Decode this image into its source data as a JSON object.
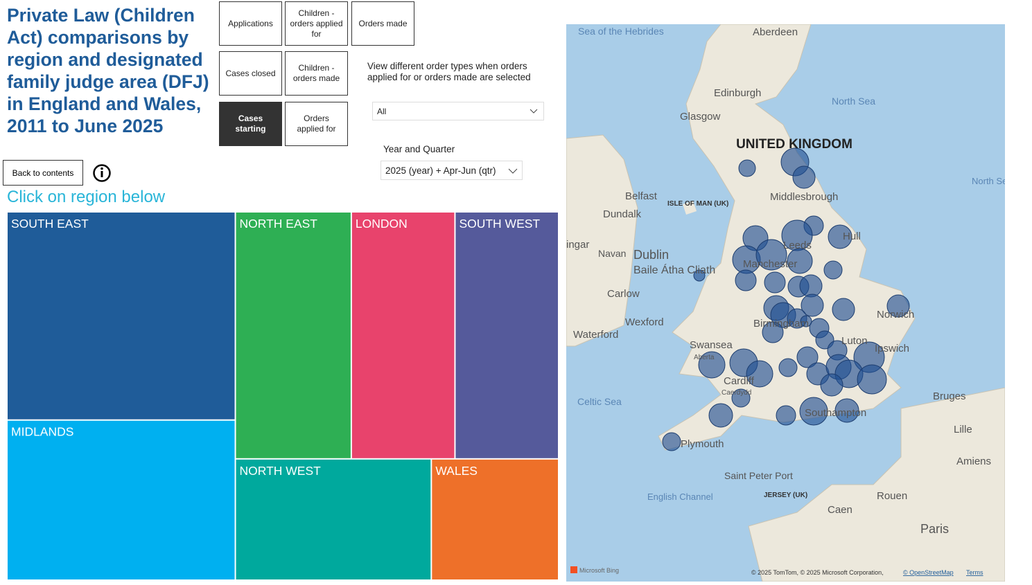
{
  "header": {
    "title": "Private Law (Children Act) comparisons by region and designated family judge area (DFJ) in England and Wales, 2011 to June 2025"
  },
  "buttons": [
    "Applications",
    "Children - orders applied for",
    "Orders made",
    "Cases closed",
    "Children - orders made",
    "Cases starting",
    "Orders applied for"
  ],
  "order_type_note": "View different order types when orders applied for or orders made are selected",
  "order_type_dropdown": "All",
  "period_label": "Year and Quarter",
  "period_dropdown": "2025 (year) + Apr-Jun (qtr)",
  "back_button": "Back to contents",
  "instruction": "Click on region below",
  "chart_data": {
    "type": "treemap",
    "categories": [
      "SOUTH EAST",
      "MIDLANDS",
      "NORTH EAST",
      "LONDON",
      "SOUTH WEST",
      "NORTH WEST",
      "WALES"
    ],
    "values": [
      23.4,
      18.0,
      14.1,
      12.6,
      12.6,
      11.7,
      7.6
    ],
    "colors": [
      "#1f5c99",
      "#00b0f0",
      "#2eaf54",
      "#e8436c",
      "#555a9b",
      "#00a99d",
      "#ee7029"
    ]
  },
  "map": {
    "labels": [
      "Sea of the Hebrides",
      "Aberdeen",
      "Edinburgh",
      "Glasgow",
      "North Sea",
      "UNITED KINGDOM",
      "North Se",
      "Belfast",
      "Dundalk",
      "ISLE OF MAN (UK)",
      "Middlesbrough",
      "Hull",
      "Leeds",
      "Manchester",
      "ingar",
      "Navan",
      "Dublin",
      "Baile Átha Cliath",
      "Carlow",
      "Wexford",
      "Waterford",
      "Swansea",
      "Aberta",
      "Cardiff",
      "Caerdydd",
      "Birmingham",
      "Norwich",
      "Luton",
      "Ipswich",
      "Celtic Sea",
      "Plymouth",
      "Southampton",
      "Bruges",
      "Lille",
      "Amiens",
      "Saint Peter Port",
      "JERSEY (UK)",
      "English Channel",
      "Rouen",
      "Caen",
      "Paris"
    ],
    "attribution": "Microsoft Bing",
    "copyright": "© 2025 TomTom, © 2025 Microsoft Corporation,",
    "osm": "© OpenStreetMap",
    "terms": "Terms"
  }
}
